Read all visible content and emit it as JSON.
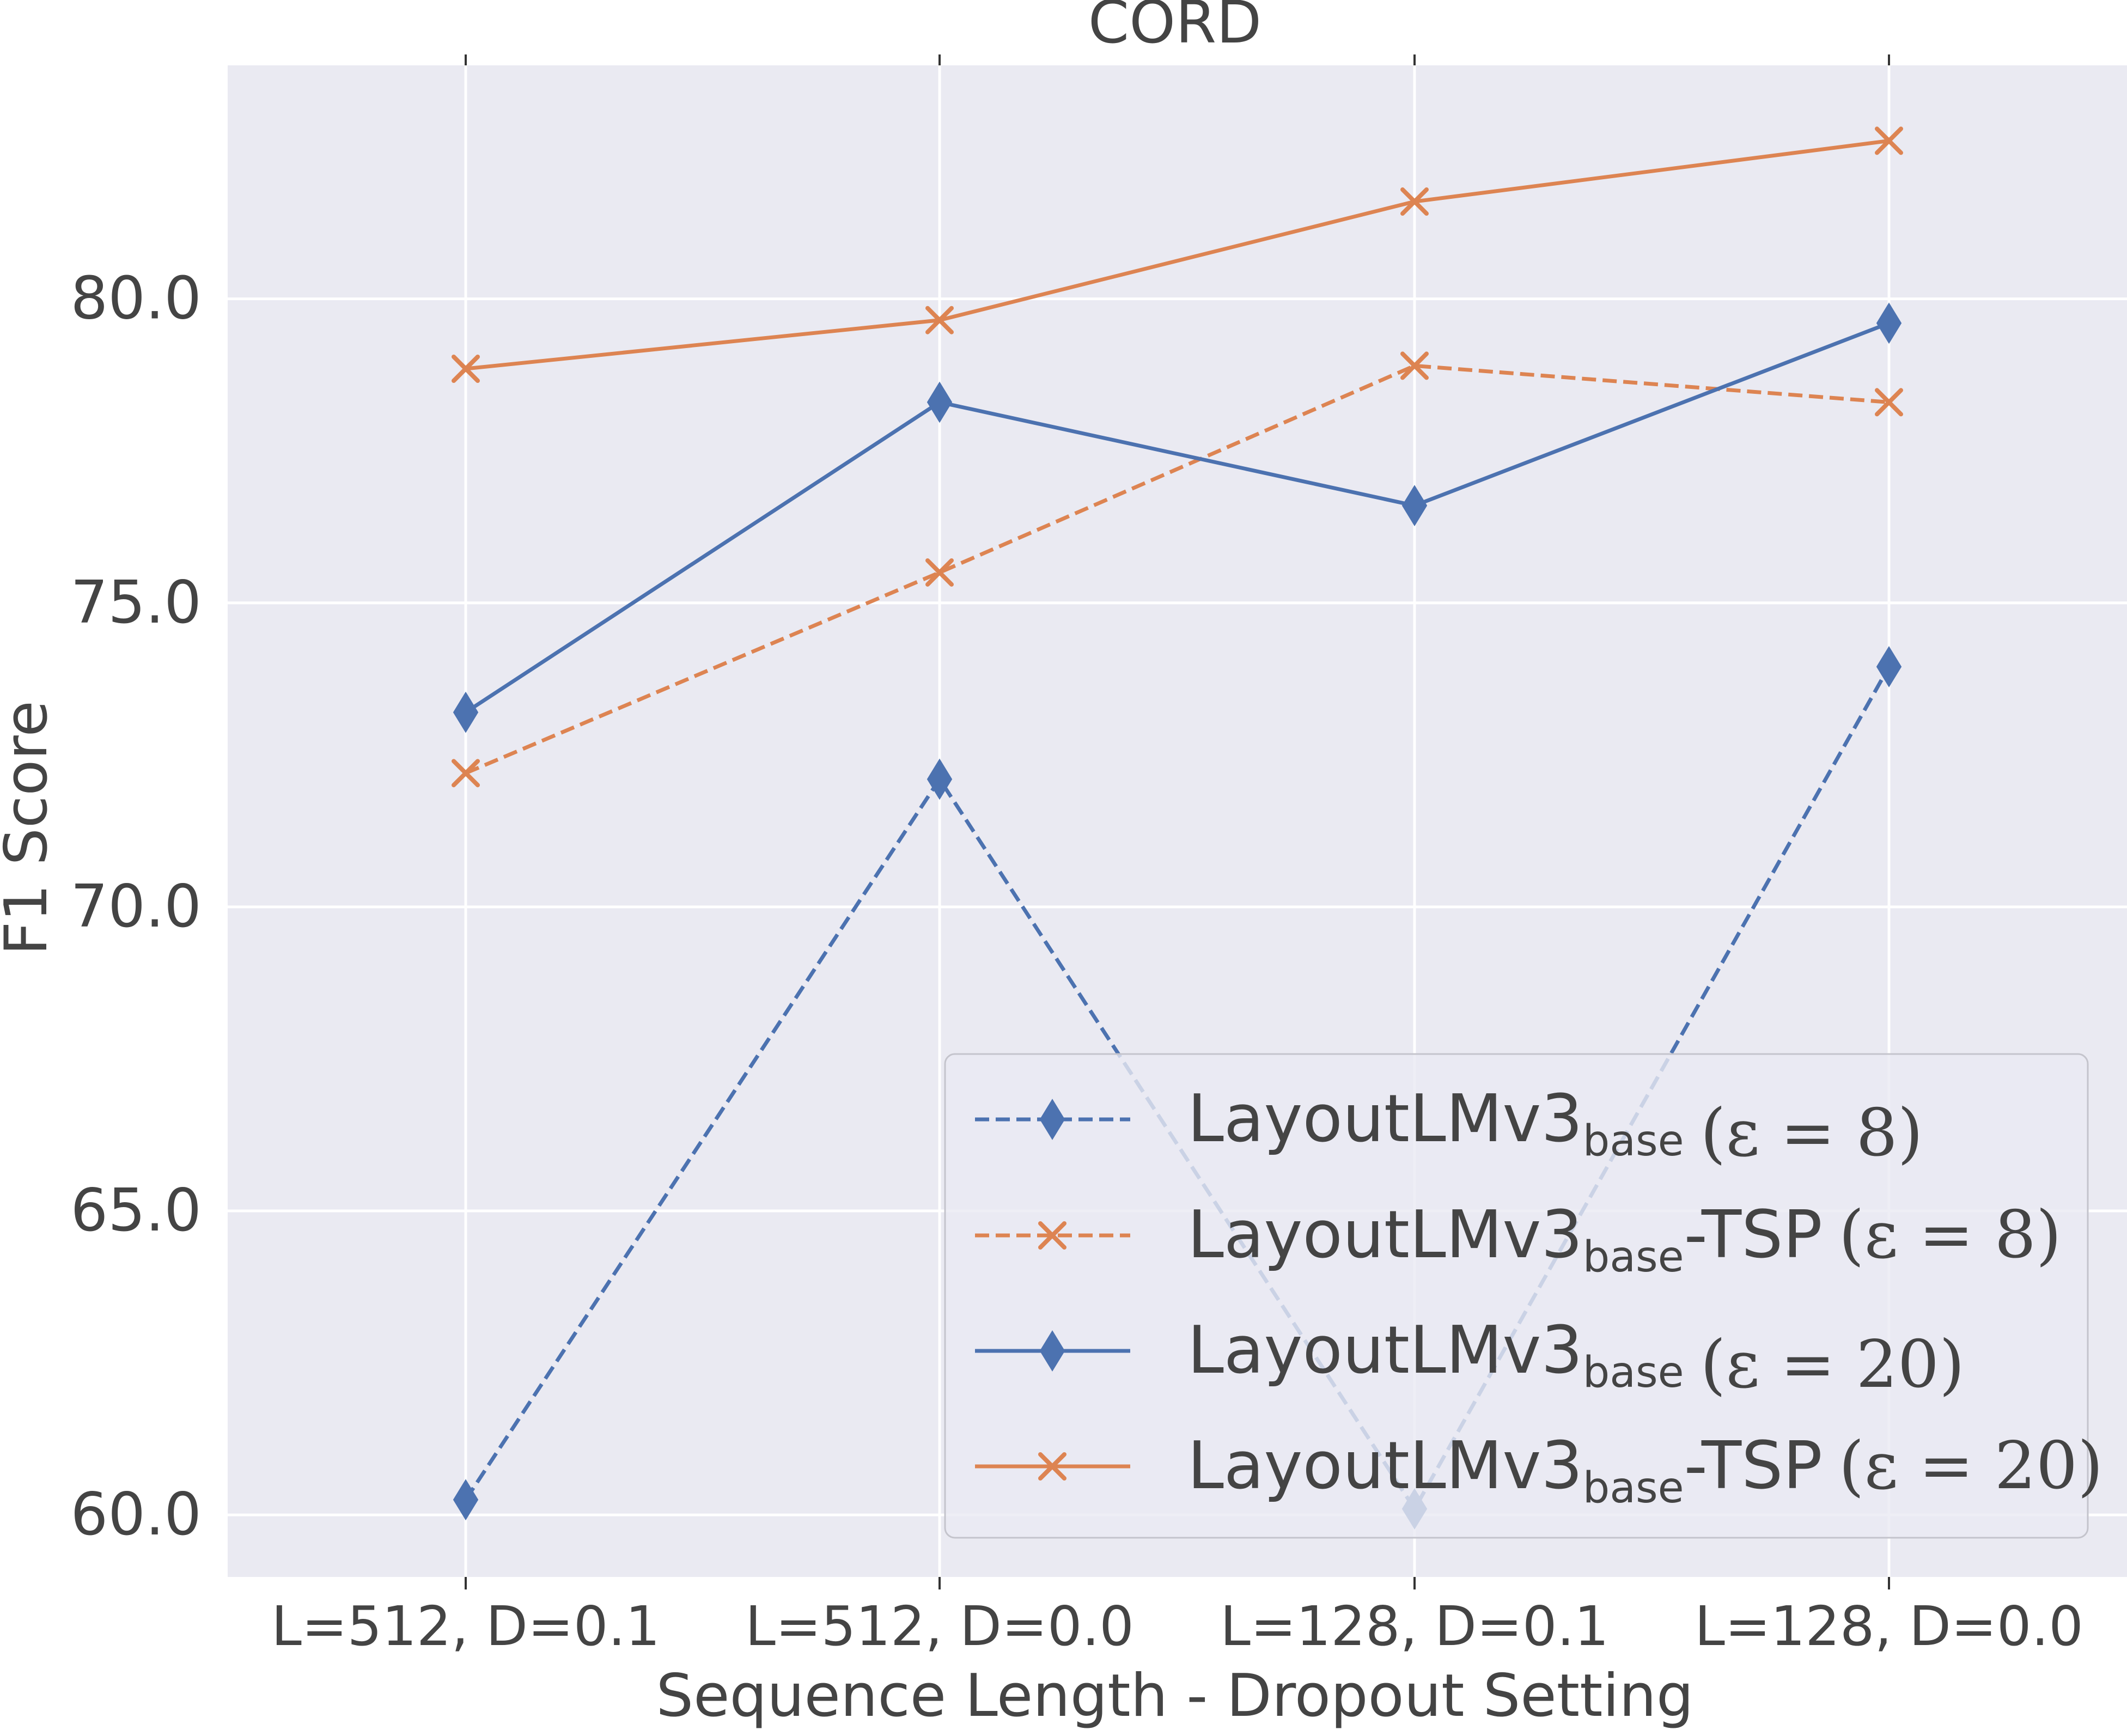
{
  "chart_data": {
    "type": "line",
    "title": "CORD",
    "xlabel": "Sequence Length - Dropout Setting",
    "ylabel": "F1 Score",
    "categories": [
      "L=512, D=0.1",
      "L=512, D=0.0",
      "L=128, D=0.1",
      "L=128, D=0.0"
    ],
    "ylim": [
      58.98,
      83.84
    ],
    "yticks": [
      60.0,
      65.0,
      70.0,
      75.0,
      80.0
    ],
    "ytick_labels": [
      "60.0",
      "65.0",
      "70.0",
      "75.0",
      "80.0"
    ],
    "grid": true,
    "legend_position": "bottom-right",
    "series": [
      {
        "name": "LayoutLMv3 base (ε = 8)",
        "base": "LayoutLMv3",
        "sub": "base",
        "suffix": "",
        "eps": "(ε = 8)",
        "values": [
          60.25,
          72.1,
          60.1,
          73.95
        ],
        "color": "#4c72b0",
        "linestyle": "dashed",
        "marker": "diamond"
      },
      {
        "name": "LayoutLMv3 base-TSP (ε = 8)",
        "base": "LayoutLMv3",
        "sub": "base",
        "suffix": "-TSP",
        "eps": "(ε = 8)",
        "values": [
          72.2,
          75.5,
          78.9,
          78.3
        ],
        "color": "#dd8452",
        "linestyle": "dashed",
        "marker": "x"
      },
      {
        "name": "LayoutLMv3 base (ε = 20)",
        "base": "LayoutLMv3",
        "sub": "base",
        "suffix": "",
        "eps": "(ε = 20)",
        "values": [
          73.2,
          78.3,
          76.6,
          79.6
        ],
        "color": "#4c72b0",
        "linestyle": "solid",
        "marker": "diamond"
      },
      {
        "name": "LayoutLMv3 base-TSP (ε = 20)",
        "base": "LayoutLMv3",
        "sub": "base",
        "suffix": "-TSP",
        "eps": "(ε = 20)",
        "values": [
          78.85,
          79.65,
          81.6,
          82.6
        ],
        "color": "#dd8452",
        "linestyle": "solid",
        "marker": "x"
      }
    ]
  }
}
